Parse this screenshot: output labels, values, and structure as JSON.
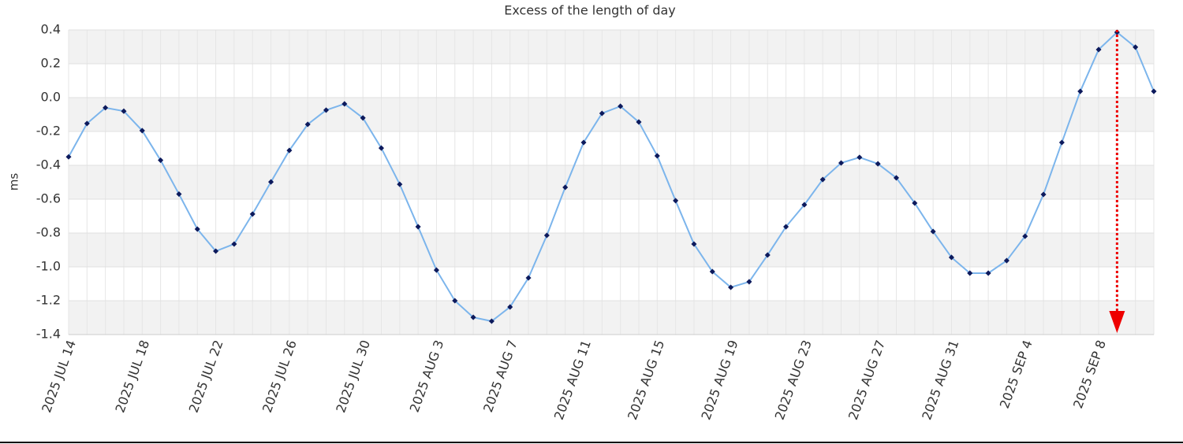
{
  "chart_data": {
    "type": "line",
    "title": "Excess of the length of day",
    "y_label": "ms",
    "categories": [
      "2025 JUL 14",
      null,
      null,
      null,
      "2025 JUL 18",
      null,
      null,
      null,
      "2025 JUL 22",
      null,
      null,
      null,
      "2025 JUL 26",
      null,
      null,
      null,
      "2025 JUL 30",
      null,
      null,
      null,
      "2025 AUG 3",
      null,
      null,
      null,
      "2025 AUG 7",
      null,
      null,
      null,
      "2025 AUG 11",
      null,
      null,
      null,
      "2025 AUG 15",
      null,
      null,
      null,
      "2025 AUG 19",
      null,
      null,
      null,
      "2025 AUG 23",
      null,
      null,
      null,
      "2025 AUG 27",
      null,
      null,
      null,
      "2025 AUG 31",
      null,
      null,
      null,
      "2025 SEP 4",
      null,
      null,
      null,
      "2025 SEP 8",
      null,
      null,
      null
    ],
    "values": [
      -0.35,
      -0.153,
      -0.06,
      -0.08,
      -0.195,
      -0.37,
      -0.57,
      -0.777,
      -0.907,
      -0.865,
      -0.688,
      -0.498,
      -0.312,
      -0.158,
      -0.074,
      -0.037,
      -0.12,
      -0.298,
      -0.512,
      -0.763,
      -1.019,
      -1.2,
      -1.298,
      -1.321,
      -1.237,
      -1.065,
      -0.814,
      -0.53,
      -0.265,
      -0.093,
      -0.051,
      -0.144,
      -0.344,
      -0.609,
      -0.865,
      -1.028,
      -1.121,
      -1.088,
      -0.93,
      -0.763,
      -0.633,
      -0.484,
      -0.386,
      -0.353,
      -0.391,
      -0.474,
      -0.623,
      -0.791,
      -0.944,
      -1.037,
      -1.037,
      -0.963,
      -0.819,
      -0.572,
      -0.265,
      0.037,
      0.284,
      0.386,
      0.298,
      0.037
    ],
    "color": "#7cb5ec",
    "marker_color": "#0d1a5c",
    "ylim": [
      -1.4,
      0.4
    ],
    "yticks": [
      -1.4,
      -1.2,
      {
        "value": -1,
        "label": "-1.0"
      },
      -0.8,
      -0.6,
      -0.4,
      -0.2,
      {
        "value": 0,
        "label": "0.0"
      },
      0.2,
      0.4
    ],
    "grid": true
  }
}
